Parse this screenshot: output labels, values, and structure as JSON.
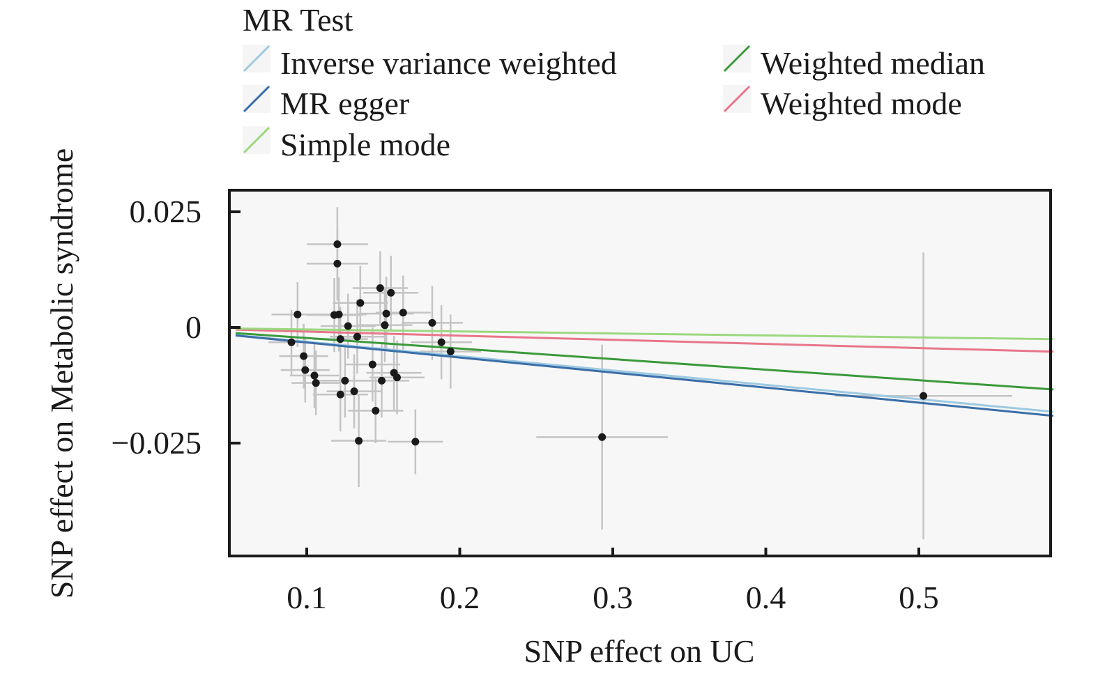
{
  "chart_data": {
    "type": "scatter",
    "title": "",
    "xlabel": "SNP effect on UC",
    "ylabel": "SNP effect on Metabolic syndrome",
    "xlim": [
      0.05,
      0.59
    ],
    "ylim": [
      -0.05,
      0.03
    ],
    "xticks": [
      {
        "value": 0.1,
        "label": "0.1"
      },
      {
        "value": 0.2,
        "label": "0.2"
      },
      {
        "value": 0.3,
        "label": "0.3"
      },
      {
        "value": 0.4,
        "label": "0.4"
      },
      {
        "value": 0.5,
        "label": "0.5"
      }
    ],
    "yticks": [
      {
        "value": 0.025,
        "label": "0.025"
      },
      {
        "value": 0,
        "label": "0"
      },
      {
        "value": -0.025,
        "label": "−0.025"
      }
    ],
    "grid": false,
    "legend": {
      "title": "MR Test",
      "position": "top",
      "entries": [
        {
          "label": "Inverse variance weighted",
          "color": "#9ecae1"
        },
        {
          "label": "Weighted median",
          "color": "#3a9a3a"
        },
        {
          "label": "MR egger",
          "color": "#3a6ea8"
        },
        {
          "label": "Weighted mode",
          "color": "#e8768a"
        },
        {
          "label": "Simple mode",
          "color": "#9bd880"
        }
      ]
    },
    "lines": [
      {
        "name": "Inverse variance weighted",
        "color": "#9ecae1",
        "intercept": 0,
        "slope": -0.031
      },
      {
        "name": "MR egger",
        "color": "#3a6ea8",
        "intercept": 0.0,
        "slope": -0.0325
      },
      {
        "name": "Weighted median",
        "color": "#3a9a3a",
        "intercept": 0,
        "slope": -0.0228
      },
      {
        "name": "Weighted mode",
        "color": "#e8768a",
        "intercept": 0,
        "slope": -0.0089
      },
      {
        "name": "Simple mode",
        "color": "#9bd880",
        "intercept": 0,
        "slope": -0.0043
      }
    ],
    "points": [
      {
        "x": 0.094,
        "y": 0.0028,
        "xerr": 0.017,
        "yerr": 0.007
      },
      {
        "x": 0.09,
        "y": -0.0032,
        "xerr": 0.015,
        "yerr": 0.007
      },
      {
        "x": 0.098,
        "y": -0.0062,
        "xerr": 0.016,
        "yerr": 0.007
      },
      {
        "x": 0.099,
        "y": -0.0092,
        "xerr": 0.016,
        "yerr": 0.007
      },
      {
        "x": 0.105,
        "y": -0.0104,
        "xerr": 0.016,
        "yerr": 0.007
      },
      {
        "x": 0.106,
        "y": -0.012,
        "xerr": 0.016,
        "yerr": 0.007
      },
      {
        "x": 0.12,
        "y": 0.018,
        "xerr": 0.02,
        "yerr": 0.008
      },
      {
        "x": 0.12,
        "y": 0.0138,
        "xerr": 0.02,
        "yerr": 0.008
      },
      {
        "x": 0.118,
        "y": 0.0027,
        "xerr": 0.018,
        "yerr": 0.008
      },
      {
        "x": 0.121,
        "y": 0.0028,
        "xerr": 0.018,
        "yerr": 0.008
      },
      {
        "x": 0.122,
        "y": -0.0025,
        "xerr": 0.018,
        "yerr": 0.007
      },
      {
        "x": 0.122,
        "y": -0.0145,
        "xerr": 0.018,
        "yerr": 0.008
      },
      {
        "x": 0.125,
        "y": -0.0115,
        "xerr": 0.018,
        "yerr": 0.008
      },
      {
        "x": 0.127,
        "y": 0.0003,
        "xerr": 0.018,
        "yerr": 0.007
      },
      {
        "x": 0.131,
        "y": -0.0138,
        "xerr": 0.018,
        "yerr": 0.008
      },
      {
        "x": 0.133,
        "y": -0.002,
        "xerr": 0.018,
        "yerr": 0.008
      },
      {
        "x": 0.134,
        "y": -0.0245,
        "xerr": 0.018,
        "yerr": 0.01
      },
      {
        "x": 0.135,
        "y": 0.0053,
        "xerr": 0.018,
        "yerr": 0.008
      },
      {
        "x": 0.143,
        "y": -0.008,
        "xerr": 0.018,
        "yerr": 0.008
      },
      {
        "x": 0.145,
        "y": -0.018,
        "xerr": 0.018,
        "yerr": 0.007
      },
      {
        "x": 0.148,
        "y": 0.0085,
        "xerr": 0.018,
        "yerr": 0.008
      },
      {
        "x": 0.149,
        "y": -0.0115,
        "xerr": 0.018,
        "yerr": 0.008
      },
      {
        "x": 0.151,
        "y": 0.0005,
        "xerr": 0.018,
        "yerr": 0.008
      },
      {
        "x": 0.152,
        "y": 0.003,
        "xerr": 0.018,
        "yerr": 0.008
      },
      {
        "x": 0.155,
        "y": 0.0075,
        "xerr": 0.018,
        "yerr": 0.008
      },
      {
        "x": 0.157,
        "y": -0.0098,
        "xerr": 0.018,
        "yerr": 0.008
      },
      {
        "x": 0.159,
        "y": -0.0108,
        "xerr": 0.018,
        "yerr": 0.008
      },
      {
        "x": 0.163,
        "y": 0.0032,
        "xerr": 0.018,
        "yerr": 0.008
      },
      {
        "x": 0.171,
        "y": -0.0247,
        "xerr": 0.018,
        "yerr": 0.007
      },
      {
        "x": 0.182,
        "y": 0.001,
        "xerr": 0.02,
        "yerr": 0.008
      },
      {
        "x": 0.188,
        "y": -0.0032,
        "xerr": 0.02,
        "yerr": 0.008
      },
      {
        "x": 0.194,
        "y": -0.0052,
        "xerr": 0.02,
        "yerr": 0.008
      },
      {
        "x": 0.293,
        "y": -0.0237,
        "xerr": 0.043,
        "yerr": 0.02
      },
      {
        "x": 0.503,
        "y": -0.0148,
        "xerr": 0.058,
        "yerr": 0.031
      }
    ]
  }
}
